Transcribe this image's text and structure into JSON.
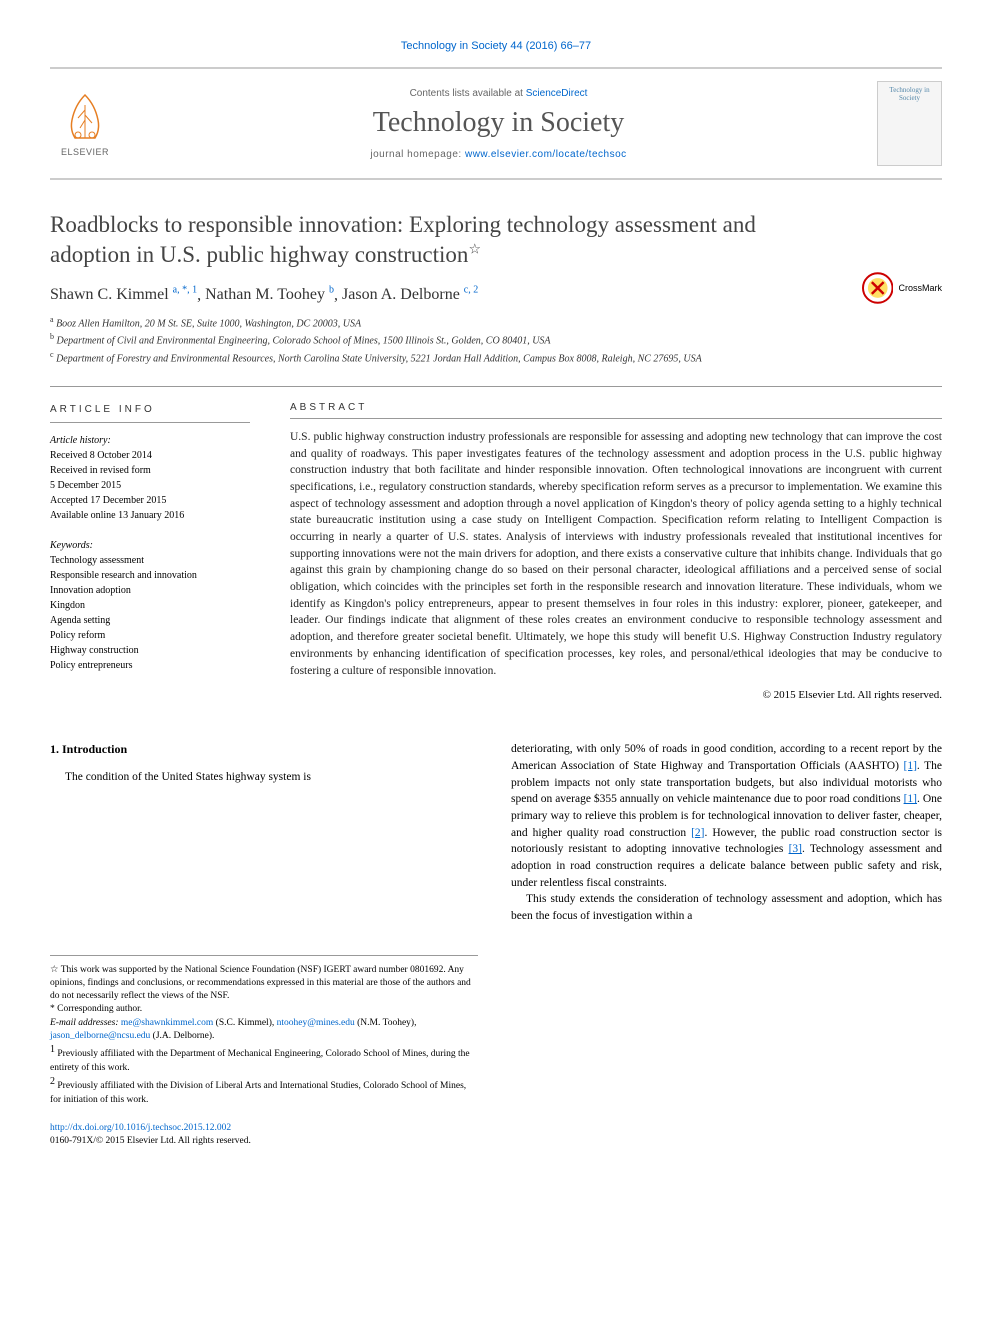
{
  "citation": "Technology in Society 44 (2016) 66–77",
  "header": {
    "contents_prefix": "Contents lists available at ",
    "contents_link": "ScienceDirect",
    "journal_name": "Technology in Society",
    "homepage_prefix": "journal homepage: ",
    "homepage_url": "www.elsevier.com/locate/techsoc",
    "elsevier_label": "ELSEVIER",
    "cover_text": "Technology in Society"
  },
  "crossmark": "CrossMark",
  "title": "Roadblocks to responsible innovation: Exploring technology assessment and adoption in U.S. public highway construction",
  "title_star": "☆",
  "authors": [
    {
      "name": "Shawn C. Kimmel",
      "sup": "a, *, 1"
    },
    {
      "name": "Nathan M. Toohey",
      "sup": "b"
    },
    {
      "name": "Jason A. Delborne",
      "sup": "c, 2"
    }
  ],
  "affiliations": [
    {
      "sup": "a",
      "text": "Booz Allen Hamilton, 20 M St. SE, Suite 1000, Washington, DC 20003, USA"
    },
    {
      "sup": "b",
      "text": "Department of Civil and Environmental Engineering, Colorado School of Mines, 1500 Illinois St., Golden, CO 80401, USA"
    },
    {
      "sup": "c",
      "text": "Department of Forestry and Environmental Resources, North Carolina State University, 5221 Jordan Hall Addition, Campus Box 8008, Raleigh, NC 27695, USA"
    }
  ],
  "article_info": {
    "header": "ARTICLE INFO",
    "history_label": "Article history:",
    "history": [
      "Received 8 October 2014",
      "Received in revised form",
      "5 December 2015",
      "Accepted 17 December 2015",
      "Available online 13 January 2016"
    ],
    "keywords_label": "Keywords:",
    "keywords": [
      "Technology assessment",
      "Responsible research and innovation",
      "Innovation adoption",
      "Kingdon",
      "Agenda setting",
      "Policy reform",
      "Highway construction",
      "Policy entrepreneurs"
    ]
  },
  "abstract": {
    "header": "ABSTRACT",
    "text": "U.S. public highway construction industry professionals are responsible for assessing and adopting new technology that can improve the cost and quality of roadways. This paper investigates features of the technology assessment and adoption process in the U.S. public highway construction industry that both facilitate and hinder responsible innovation. Often technological innovations are incongruent with current specifications, i.e., regulatory construction standards, whereby specification reform serves as a precursor to implementation. We examine this aspect of technology assessment and adoption through a novel application of Kingdon's theory of policy agenda setting to a highly technical state bureaucratic institution using a case study on Intelligent Compaction. Specification reform relating to Intelligent Compaction is occurring in nearly a quarter of U.S. states. Analysis of interviews with industry professionals revealed that institutional incentives for supporting innovations were not the main drivers for adoption, and there exists a conservative culture that inhibits change. Individuals that go against this grain by championing change do so based on their personal character, ideological affiliations and a perceived sense of social obligation, which coincides with the principles set forth in the responsible research and innovation literature. These individuals, whom we identify as Kingdon's policy entrepreneurs, appear to present themselves in four roles in this industry: explorer, pioneer, gatekeeper, and leader. Our findings indicate that alignment of these roles creates an environment conducive to responsible technology assessment and adoption, and therefore greater societal benefit. Ultimately, we hope this study will benefit U.S. Highway Construction Industry regulatory environments by enhancing identification of specification processes, key roles, and personal/ethical ideologies that may be conducive to fostering a culture of responsible innovation.",
    "copyright": "© 2015 Elsevier Ltd. All rights reserved."
  },
  "intro": {
    "heading": "1. Introduction",
    "col1_p1": "The condition of the United States highway system is",
    "col2_p1_a": "deteriorating, with only 50% of roads in good condition, according to a recent report by the American Association of State Highway and Transportation Officials (AASHTO) ",
    "col2_p1_b": ". The problem impacts not only state transportation budgets, but also individual motorists who spend on average $355 annually on vehicle maintenance due to poor road conditions ",
    "col2_p1_c": ". One primary way to relieve this problem is for technological innovation to deliver faster, cheaper, and higher quality road construction ",
    "col2_p1_d": ". However, the public road construction sector is notoriously resistant to adopting innovative technologies ",
    "col2_p1_e": ". Technology assessment and adoption in road construction requires a delicate balance between public safety and risk, under relentless fiscal constraints.",
    "col2_p2": "This study extends the consideration of technology assessment and adoption, which has been the focus of investigation within a",
    "refs": {
      "r1": "[1]",
      "r2": "[2]",
      "r3": "[3]"
    }
  },
  "footnotes": {
    "star": "☆ This work was supported by the National Science Foundation (NSF) IGERT award number 0801692. Any opinions, findings and conclusions, or recommendations expressed in this material are those of the authors and do not necessarily reflect the views of the NSF.",
    "corr": "* Corresponding author.",
    "email_label": "E-mail addresses:",
    "emails": [
      {
        "addr": "me@shawnkimmel.com",
        "who": "(S.C. Kimmel)"
      },
      {
        "addr": "ntoohey@mines.edu",
        "who": "(N.M. Toohey)"
      },
      {
        "addr": "jason_delborne@ncsu.edu",
        "who": "(J.A. Delborne)."
      }
    ],
    "fn1": "Previously affiliated with the Department of Mechanical Engineering, Colorado School of Mines, during the entirety of this work.",
    "fn2": "Previously affiliated with the Division of Liberal Arts and International Studies, Colorado School of Mines, for initiation of this work."
  },
  "footer": {
    "doi": "http://dx.doi.org/10.1016/j.techsoc.2015.12.002",
    "issn_copyright": "0160-791X/© 2015 Elsevier Ltd. All rights reserved."
  }
}
